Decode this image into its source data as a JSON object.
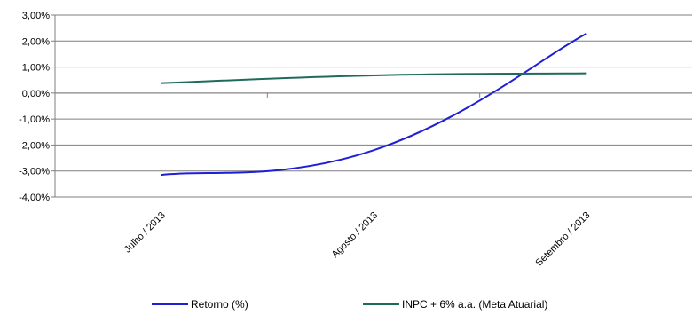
{
  "chart_data": {
    "type": "line",
    "categories": [
      "Julho / 2013",
      "Agosto / 2013",
      "Setembro / 2013"
    ],
    "series": [
      {
        "name": "Retorno (%)",
        "values": [
          -3.15,
          -2.2,
          2.28
        ],
        "color": "#1f1fd6"
      },
      {
        "name": "INPC + 6% a.a. (Meta Atuarial)",
        "values": [
          0.38,
          0.68,
          0.76
        ],
        "color": "#1e6b5c"
      }
    ],
    "y_ticks": [
      "3,00%",
      "2,00%",
      "1,00%",
      "0,00%",
      "-1,00%",
      "-2,00%",
      "-3,00%",
      "-4,00%"
    ],
    "ylim": [
      -4,
      3
    ],
    "grid": true,
    "legend_position": "bottom",
    "title": "",
    "xlabel": "",
    "ylabel": ""
  }
}
